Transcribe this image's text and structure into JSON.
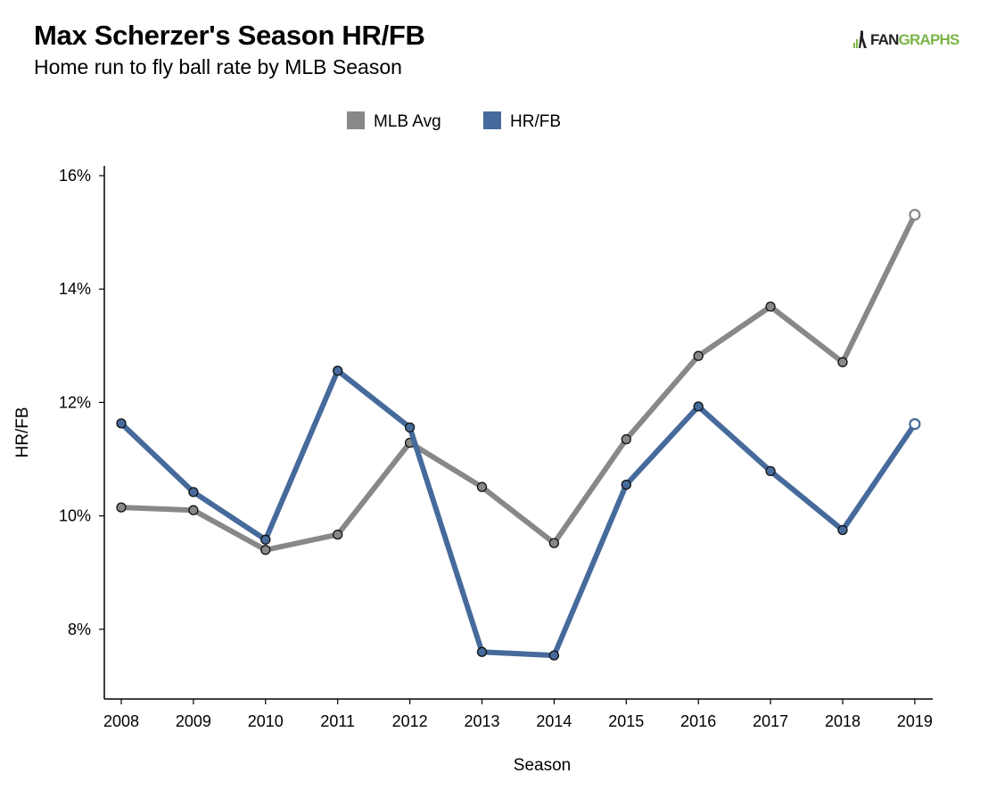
{
  "header": {
    "title": "Max Scherzer's Season HR/FB",
    "subtitle": "Home run to fly ball rate by MLB Season"
  },
  "brand": {
    "prefix": "FAN",
    "suffix": "GRAPHS",
    "icon": "fangraphs-logo-icon",
    "colors": {
      "prefix": "#222222",
      "suffix": "#7ab648"
    }
  },
  "chart_data": {
    "type": "line",
    "categories": [
      "2008",
      "2009",
      "2010",
      "2011",
      "2012",
      "2013",
      "2014",
      "2015",
      "2016",
      "2017",
      "2018",
      "2019"
    ],
    "series": [
      {
        "name": "MLB Avg",
        "color": "#888888",
        "values": [
          10.15,
          10.1,
          9.4,
          9.67,
          11.29,
          10.51,
          9.52,
          11.35,
          12.82,
          13.69,
          12.71,
          15.31
        ],
        "last_point_hollow": true
      },
      {
        "name": "HR/FB",
        "color": "#466a9b",
        "values": [
          11.63,
          10.42,
          9.58,
          12.56,
          11.56,
          7.6,
          7.54,
          10.55,
          11.93,
          10.79,
          9.75,
          11.62
        ],
        "last_point_hollow": true
      }
    ],
    "y_ticks": [
      8,
      10,
      12,
      14,
      16
    ],
    "y_tick_format": "{v}%",
    "ylim": [
      6.8,
      16.2
    ],
    "xlabel": "Season",
    "ylabel": "HR/FB",
    "legend_position": "top-center",
    "grid": false
  }
}
